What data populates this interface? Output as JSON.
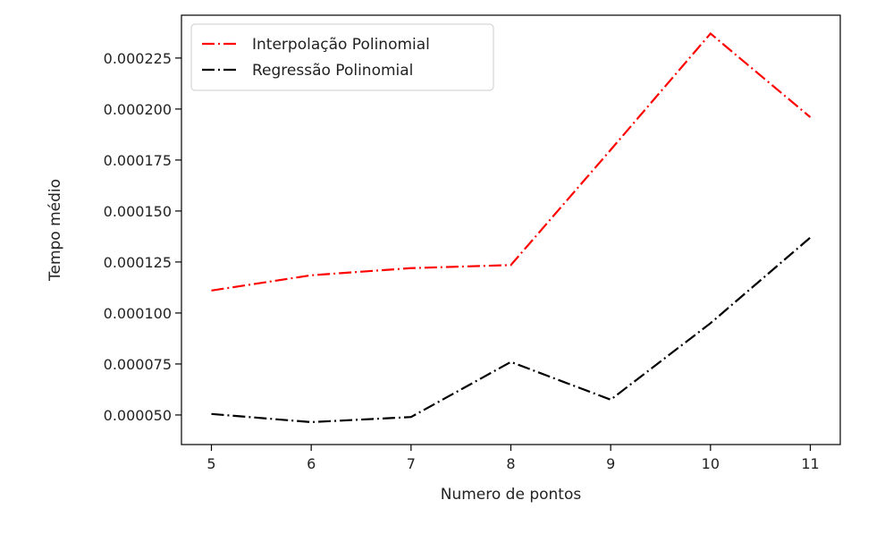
{
  "chart_data": {
    "type": "line",
    "title": "",
    "xlabel": "Numero de pontos",
    "ylabel": "Tempo médio",
    "x": [
      5,
      6,
      7,
      8,
      9,
      10,
      11
    ],
    "x_ticks": [
      "5",
      "6",
      "7",
      "8",
      "9",
      "10",
      "11"
    ],
    "y_ticks": [
      5e-05,
      7.5e-05,
      0.0001,
      0.000125,
      0.00015,
      0.000175,
      0.0002,
      0.000225
    ],
    "y_tick_labels": [
      "0.000050",
      "0.000075",
      "0.000100",
      "0.000125",
      "0.000150",
      "0.000175",
      "0.000200",
      "0.000225"
    ],
    "xlim": [
      4.7,
      11.3
    ],
    "ylim": [
      3.55e-05,
      0.000246
    ],
    "grid": false,
    "legend_position": "top-left",
    "series": [
      {
        "name": "Interpolação Polinomial",
        "color": "#ff0000",
        "line_style": "dash-dot",
        "values": [
          0.000111,
          0.0001185,
          0.000122,
          0.0001235,
          0.00018,
          0.000237,
          0.000196
        ]
      },
      {
        "name": "Regressão Polinomial",
        "color": "#000000",
        "line_style": "dash-dot",
        "values": [
          5.05e-05,
          4.65e-05,
          4.9e-05,
          7.6e-05,
          5.75e-05,
          9.5e-05,
          0.000137
        ]
      }
    ]
  }
}
